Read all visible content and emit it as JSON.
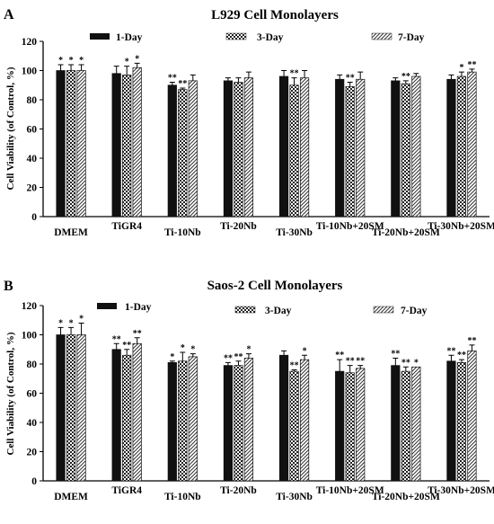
{
  "chart_data": [
    {
      "type": "bar",
      "panel": "A",
      "title": "L929 Cell Monolayers",
      "ylabel": "Cell Viability (of Control, %)",
      "xlabel": "",
      "ylim": [
        0,
        120
      ],
      "yticks": [
        0,
        20,
        40,
        60,
        80,
        100,
        120
      ],
      "categories": [
        "DMEM",
        "TiGR4",
        "Ti-10Nb",
        "Ti-20Nb",
        "Ti-30Nb",
        "Ti-10Nb+20SM",
        "Ti-20Nb+20SM",
        "Ti-30Nb+20SM"
      ],
      "series": [
        {
          "name": "1-Day",
          "values": [
            100,
            98,
            90,
            93,
            96,
            94,
            93,
            94
          ],
          "errors": [
            4,
            5,
            2,
            2,
            4,
            3,
            2,
            3
          ],
          "sig": [
            "*",
            "",
            "**",
            "",
            "",
            "",
            "",
            ""
          ]
        },
        {
          "name": "3-Day",
          "values": [
            100,
            97,
            87,
            92,
            90,
            89,
            91,
            96
          ],
          "errors": [
            4,
            6,
            1,
            3,
            5,
            3,
            2,
            3
          ],
          "sig": [
            "*",
            "*",
            "**",
            "",
            "**",
            "**",
            "**",
            "*"
          ]
        },
        {
          "name": "7-Day",
          "values": [
            100,
            102,
            93,
            95,
            95,
            94,
            96,
            99
          ],
          "errors": [
            4,
            3,
            4,
            4,
            5,
            5,
            2,
            2
          ],
          "sig": [
            "*",
            "*",
            "",
            "",
            "",
            "",
            "",
            "**"
          ]
        }
      ],
      "grid": false,
      "legend": "top"
    },
    {
      "type": "bar",
      "panel": "B",
      "title": "Saos-2 Cell Monolayers",
      "ylabel": "Cell Viability (of Control, %)",
      "xlabel": "",
      "ylim": [
        0,
        120
      ],
      "yticks": [
        0,
        20,
        40,
        60,
        80,
        100,
        120
      ],
      "categories": [
        "DMEM",
        "TiGR4",
        "Ti-10Nb",
        "Ti-20Nb",
        "Ti-30Nb",
        "Ti-10Nb+20SM",
        "Ti-20Nb+20SM",
        "Ti-30Nb+20SM"
      ],
      "series": [
        {
          "name": "1-Day",
          "values": [
            100,
            90,
            81,
            79,
            86,
            75,
            79,
            82
          ],
          "errors": [
            5,
            4,
            1,
            2,
            3,
            8,
            5,
            4
          ],
          "sig": [
            "*",
            "**",
            "*",
            "**",
            "",
            "**",
            "**",
            "**"
          ]
        },
        {
          "name": "3-Day",
          "values": [
            100,
            86,
            82,
            79,
            75,
            74,
            75,
            81
          ],
          "errors": [
            5,
            4,
            6,
            3,
            1,
            5,
            3,
            2
          ],
          "sig": [
            "*",
            "**",
            "*",
            "**",
            "**",
            "**",
            "**",
            "**"
          ]
        },
        {
          "name": "7-Day",
          "values": [
            100,
            94,
            85,
            84,
            83,
            77,
            78,
            89
          ],
          "errors": [
            8,
            4,
            2,
            3,
            3,
            2,
            0,
            4
          ],
          "sig": [
            "*",
            "**",
            "*",
            "*",
            "*",
            "**",
            "*",
            "**"
          ]
        }
      ],
      "grid": false,
      "legend": "top"
    }
  ]
}
